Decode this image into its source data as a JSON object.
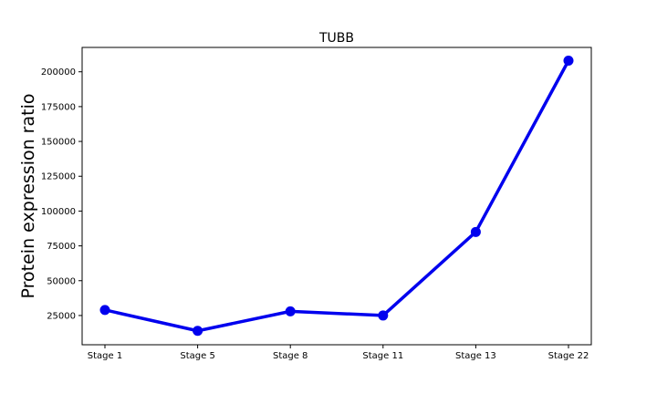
{
  "chart_data": {
    "type": "line",
    "title": "TUBB",
    "xlabel": "",
    "ylabel": "Protein expression ratio",
    "categories": [
      "Stage 1",
      "Stage 5",
      "Stage 8",
      "Stage 11",
      "Stage 13",
      "Stage 22"
    ],
    "series": [
      {
        "values": [
          29000,
          14000,
          28000,
          25000,
          85000,
          208000
        ]
      }
    ],
    "yticks": [
      25000,
      50000,
      75000,
      100000,
      125000,
      150000,
      175000,
      200000
    ],
    "ylim": [
      4000,
      217500
    ],
    "grid": false,
    "line_color": "#0000ee"
  }
}
